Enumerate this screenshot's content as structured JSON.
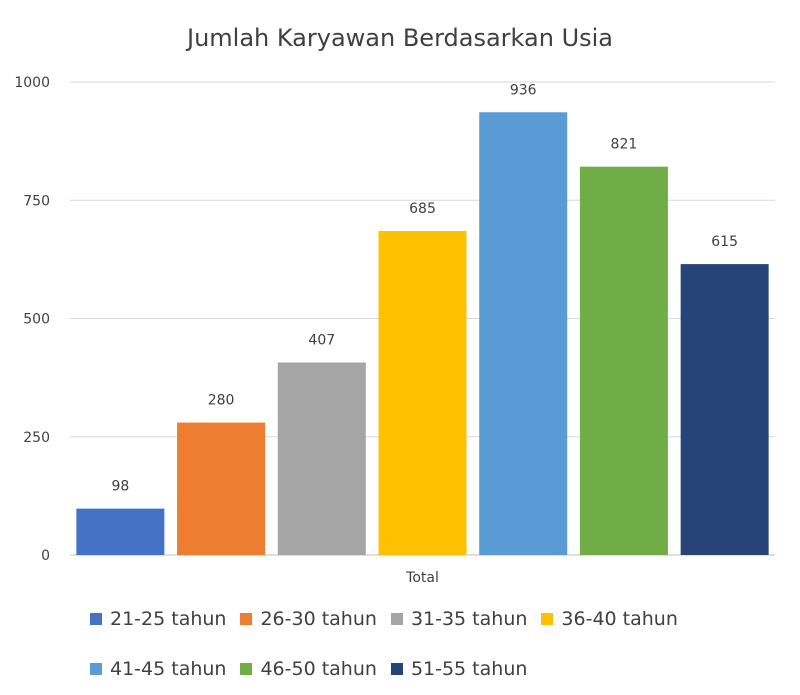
{
  "chart_data": {
    "type": "bar",
    "title": "Jumlah Karyawan Berdasarkan Usia",
    "categories": [
      "Total"
    ],
    "series": [
      {
        "name": "21-25 tahun",
        "values": [
          98
        ],
        "color": "#4472C4"
      },
      {
        "name": "26-30 tahun",
        "values": [
          280
        ],
        "color": "#ED7D31"
      },
      {
        "name": "31-35 tahun",
        "values": [
          407
        ],
        "color": "#A5A5A5"
      },
      {
        "name": "36-40 tahun",
        "values": [
          685
        ],
        "color": "#FFC000"
      },
      {
        "name": "41-45 tahun",
        "values": [
          936
        ],
        "color": "#5B9BD5"
      },
      {
        "name": "46-50 tahun",
        "values": [
          821
        ],
        "color": "#70AD47"
      },
      {
        "name": "51-55 tahun",
        "values": [
          615
        ],
        "color": "#264478"
      }
    ],
    "ylim": [
      0,
      1000
    ],
    "yticks": [
      0,
      250,
      500,
      750,
      1000
    ],
    "grid": true,
    "legend_position": "bottom"
  }
}
